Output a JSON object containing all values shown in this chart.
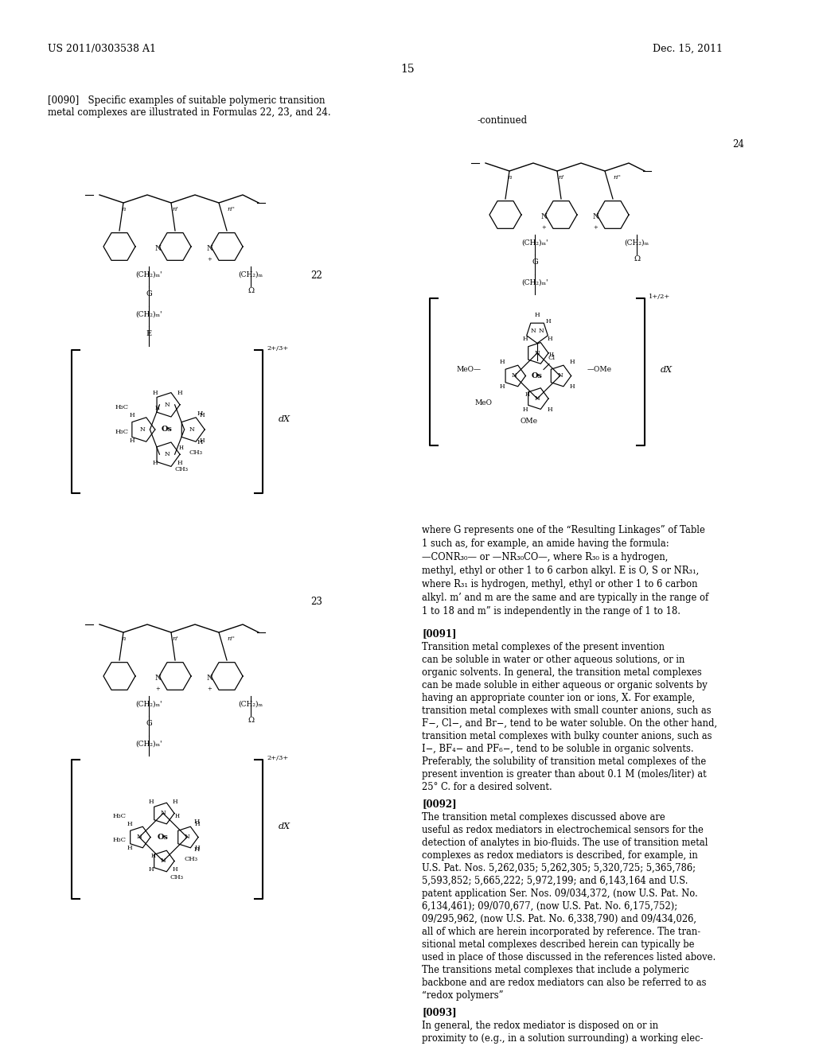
{
  "page_number": "15",
  "patent_number": "US 2011/0303538 A1",
  "patent_date": "Dec. 15, 2011",
  "background_color": "#ffffff",
  "text_color": "#000000",
  "formula_label_22": "22",
  "formula_label_23": "23",
  "formula_label_24": "24",
  "continued_label": "-continued",
  "paragraph_0090_title": "[0090]",
  "paragraph_0090_text": "Specific examples of suitable polymeric transition\nmetal complexes are illustrated in Formulas 22, 23, and 24.",
  "paragraph_0091_title": "[0091]",
  "paragraph_0091_text": "Transition metal complexes of the present invention\ncan be soluble in water or other aqueous solutions, or in\norganic solvents. In general, the transition metal complexes\ncan be made soluble in either aqueous or organic solvents by\nhaving an appropriate counter ion or ions, X. For example,\ntransition metal complexes with small counter anions, such as\nF−, Cl−, and Br−, tend to be water soluble. On the other hand,\ntransition metal complexes with bulky counter anions, such as\nI−, BF₄− and PF₆−, tend to be soluble in organic solvents.\nPreferably, the solubility of transition metal complexes of the\npresent invention is greater than about 0.1 M (moles/liter) at\n25° C. for a desired solvent.",
  "paragraph_0092_title": "[0092]",
  "paragraph_0092_text": "The transition metal complexes discussed above are\nuseful as redox mediators in electrochemical sensors for the\ndetection of analytes in bio-fluids. The use of transition metal\ncomplexes as redox mediators is described, for example, in\nU.S. Pat. Nos. 5,262,035; 5,262,305; 5,320,725; 5,365,786;\n5,593,852; 5,665,222; 5,972,199; and 6,143,164 and U.S.\npatent application Ser. Nos. 09/034,372, (now U.S. Pat. No.\n6,134,461); 09/070,677, (now U.S. Pat. No. 6,175,752);\n09/295,962, (now U.S. Pat. No. 6,338,790) and 09/434,026,\nall of which are herein incorporated by reference. The tran-\nsitional metal complexes described herein can typically be\nused in place of those discussed in the references listed above.\nThe transitions metal complexes that include a polymeric\nbackbone and are redox mediators can also be referred to as\n“redox polymers”",
  "paragraph_0093_title": "[0093]",
  "paragraph_0093_text": "In general, the redox mediator is disposed on or in\nproximity to (e.g., in a solution surrounding) a working elec-",
  "where_G_text": "where G represents one of the “Resulting Linkages” of Table\n1 such as, for example, an amide having the formula:\n—CONR₃₀— or —NR₃₀CO—, where R₃₀ is a hydrogen,\nmethyl, ethyl or other 1 to 6 carbon alkyl. E is O, S or NR₃₁,\nwhere R₃₁ is hydrogen, methyl, ethyl or other 1 to 6 carbon\nalkyl. m’ and m are the same and are typically in the range of\n1 to 18 and m” is independently in the range of 1 to 18."
}
